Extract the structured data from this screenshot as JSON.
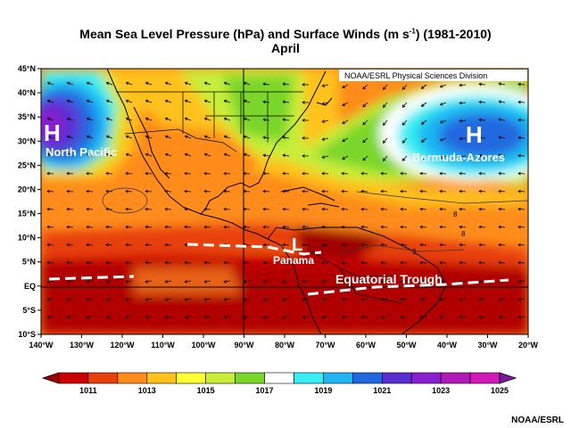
{
  "title_line1": "Mean Sea Level Pressure  (hPa) and Surface Winds (m s",
  "title_superscript": "-1",
  "title_line1_end": ") (1981-2010)",
  "title_line2": "April",
  "source_label": "NOAA/ESRL Physical Sciences Division",
  "credit": "NOAA/ESRL",
  "lat_labels": [
    "45°N",
    "40°N",
    "35°N",
    "30°N",
    "25°N",
    "20°N",
    "15°N",
    "10°N",
    "5°N",
    "EQ",
    "5°S",
    "10°S"
  ],
  "lon_labels": [
    "140°W",
    "130°W",
    "120°W",
    "110°W",
    "100°W",
    "90°W",
    "80°W",
    "70°W",
    "60°W",
    "50°W",
    "40°W",
    "30°W",
    "20°W"
  ],
  "colorbar": {
    "colors": [
      "#a00000",
      "#cc0000",
      "#e8400a",
      "#ff8c1a",
      "#ffc21a",
      "#ffff33",
      "#c8ee3a",
      "#7ad62a",
      "#ffffff",
      "#37eef2",
      "#1fb4f2",
      "#2168e0",
      "#5a2fd2",
      "#8a1fd0",
      "#b01ab8",
      "#d21ab8",
      "#7a1aa0"
    ],
    "labels": [
      "1011",
      "1013",
      "1015",
      "1017",
      "1019",
      "1021",
      "1023",
      "1025"
    ]
  },
  "annotations": {
    "north_pacific_H": "H",
    "north_pacific": "North Pacific",
    "bermuda_H": "H",
    "bermuda": "Bermuda-Azores",
    "panama_L": "L",
    "panama": "Panama",
    "equatorial_trough": "Equatorial Trough"
  },
  "contour_labels": [
    "8",
    "9",
    "8"
  ]
}
